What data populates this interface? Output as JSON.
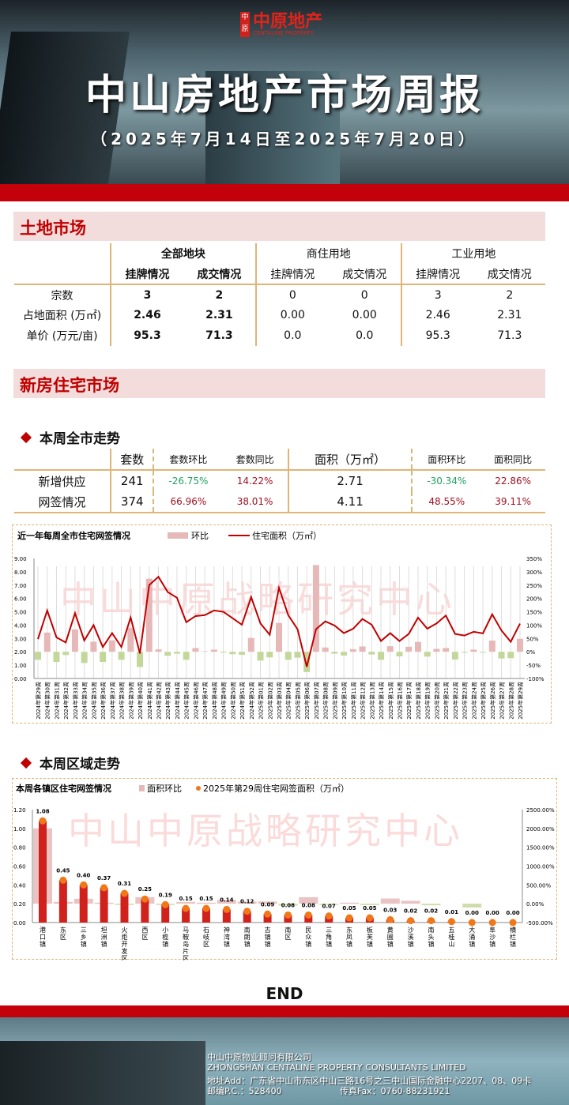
{
  "header": {
    "logo_seal": "中原",
    "logo_cn": "中原地产",
    "logo_en": "CENTALINE PROPERTY",
    "title": "中山房地产市场周报",
    "subtitle": "（2025年7月14日至2025年7月20日）"
  },
  "land": {
    "section_title": "土地市场",
    "groups": [
      "全部地块",
      "商住用地",
      "工业用地"
    ],
    "subheads": [
      "挂牌情况",
      "成交情况",
      "挂牌情况",
      "成交情况",
      "挂牌情况",
      "成交情况"
    ],
    "rows": [
      {
        "label": "宗数",
        "values": [
          "3",
          "2",
          "0",
          "0",
          "3",
          "2"
        ]
      },
      {
        "label": "占地面积 (万㎡)",
        "values": [
          "2.46",
          "2.31",
          "0.00",
          "0.00",
          "2.46",
          "2.31"
        ]
      },
      {
        "label": "单价 (万元/亩)",
        "values": [
          "95.3",
          "71.3",
          "0.0",
          "0.0",
          "95.3",
          "71.3"
        ]
      }
    ]
  },
  "newhome": {
    "section_title": "新房住宅市场",
    "city_trend_title": "本周全市走势",
    "headers": [
      "套数",
      "套数环比",
      "套数同比",
      "面积（万㎡）",
      "面积环比",
      "面积同比"
    ],
    "rows": [
      {
        "label": "新增供应",
        "values": [
          "241",
          "-26.75%",
          "14.22%",
          "2.71",
          "-30.34%",
          "22.86%"
        ]
      },
      {
        "label": "网签情况",
        "values": [
          "374",
          "66.96%",
          "38.01%",
          "4.11",
          "48.55%",
          "39.11%"
        ]
      }
    ],
    "district_trend_title": "本周区域走势"
  },
  "colors": {
    "brand_red": "#c4000b",
    "line": "#c00000",
    "bar_pos": "#e6b8b8",
    "bar_neg": "#c4d79b",
    "bar_district": "#d0211c",
    "dot": "#f07818",
    "watermark": "#fbdada"
  },
  "watermark": "中山中原战略研究中心",
  "chart_data": [
    {
      "type": "bar+line",
      "title": "近一年每周全市住宅网签情况",
      "legend": [
        "环比",
        "住宅面积（万㎡）"
      ],
      "categories": [
        "2024年第29周",
        "2024年第30周",
        "2024年第31周",
        "2024年第32周",
        "2024年第33周",
        "2024年第34周",
        "2024年第35周",
        "2024年第36周",
        "2024年第37周",
        "2024年第38周",
        "2024年第39周",
        "2024年第40周",
        "2024年第41周",
        "2024年第42周",
        "2024年第43周",
        "2024年第44周",
        "2024年第45周",
        "2024年第46周",
        "2024年第47周",
        "2024年第48周",
        "2024年第49周",
        "2024年第50周",
        "2024年第51周",
        "2024年第52周",
        "2025年第01周",
        "2025年第02周",
        "2025年第03周",
        "2025年第04周",
        "2025年第05周",
        "2025年第06周",
        "2025年第07周",
        "2025年第08周",
        "2025年第09周",
        "2025年第10周",
        "2025年第11周",
        "2025年第12周",
        "2025年第13周",
        "2025年第14周",
        "2025年第15周",
        "2025年第16周",
        "2025年第17周",
        "2025年第18周",
        "2025年第19周",
        "2025年第20周",
        "2025年第21周",
        "2025年第22周",
        "2025年第23周",
        "2025年第24周",
        "2025年第25周",
        "2025年第26周",
        "2025年第27周",
        "2025年第28周",
        "2025年第29周"
      ],
      "series": [
        {
          "name": "住宅面积（万㎡）",
          "axis": "left",
          "type": "line",
          "values": [
            2.95,
            5.1,
            3.08,
            2.7,
            4.9,
            2.85,
            4.0,
            2.36,
            3.4,
            2.36,
            4.58,
            1.87,
            7.0,
            7.62,
            6.48,
            6.05,
            4.22,
            4.68,
            4.75,
            5.1,
            5.0,
            4.52,
            4.03,
            6.1,
            4.13,
            3.28,
            6.8,
            4.75,
            3.7,
            0.88,
            3.7,
            4.28,
            3.97,
            3.4,
            3.73,
            4.46,
            4.03,
            2.81,
            3.4,
            2.81,
            3.34,
            4.56,
            3.73,
            4.13,
            4.72,
            3.34,
            3.22,
            3.5,
            3.38,
            4.81,
            3.6,
            2.75,
            4.11
          ]
        },
        {
          "name": "环比",
          "axis": "right",
          "type": "bar",
          "unit": "%",
          "values": [
            -30,
            72,
            -38,
            -12,
            84,
            -42,
            38,
            -38,
            43,
            -30,
            90,
            -57,
            274,
            9,
            -15,
            -7,
            -30,
            14,
            2,
            8,
            -3,
            -9,
            -11,
            52,
            -33,
            -21,
            108,
            -30,
            -22,
            -76,
            325,
            16,
            -7,
            -14,
            10,
            20,
            -10,
            -30,
            21,
            -17,
            19,
            37,
            -18,
            11,
            14,
            -29,
            -3,
            8,
            -3,
            42,
            -25,
            -24,
            49
          ]
        }
      ],
      "yleft": {
        "range": [
          0,
          9
        ],
        "ticks": [
          "0.00",
          "1.00",
          "2.00",
          "3.00",
          "4.00",
          "5.00",
          "6.00",
          "7.00",
          "8.00",
          "9.00"
        ]
      },
      "yright": {
        "range": [
          -100,
          350
        ],
        "ticks": [
          "-100%",
          "-50%",
          "0%",
          "50%",
          "100%",
          "150%",
          "200%",
          "250%",
          "300%",
          "350%"
        ]
      },
      "grid": false,
      "legend_position": "top"
    },
    {
      "type": "bar+scatter",
      "title": "本周各镇区住宅网签情况",
      "legend": [
        "面积环比",
        "2025年第29周住宅网签面积（万㎡）"
      ],
      "categories": [
        "港口镇",
        "东区",
        "三乡镇",
        "坦洲镇",
        "火炬开发区",
        "西区",
        "小榄镇",
        "马鞍岛片区",
        "石岐区",
        "神湾镇",
        "南朗镇",
        "古镇镇",
        "南区",
        "民众镇",
        "三角镇",
        "东凤镇",
        "板芙镇",
        "黄圃镇",
        "沙溪镇",
        "南头镇",
        "五桂山",
        "大涌镇",
        "阜沙镇",
        "横栏镇"
      ],
      "series": [
        {
          "name": "2025年第29周住宅网签面积（万㎡）",
          "axis": "left",
          "values": [
            1.08,
            0.45,
            0.4,
            0.37,
            0.31,
            0.25,
            0.19,
            0.15,
            0.15,
            0.14,
            0.12,
            0.09,
            0.08,
            0.08,
            0.07,
            0.05,
            0.05,
            0.03,
            0.02,
            0.02,
            0.01,
            0.0,
            0.0,
            0.0
          ],
          "labels": [
            "1.08",
            "0.45",
            "0.40",
            "0.37",
            "0.31",
            "0.25",
            "0.19",
            "0.15",
            "0.15",
            "0.14",
            "0.12",
            "0.09",
            "0.08",
            "0.08",
            "0.07",
            "0.05",
            "0.05",
            "0.03",
            "0.02",
            "0.02",
            "0.01",
            "0.00",
            "0.00",
            "0.00"
          ]
        },
        {
          "name": "面积环比",
          "axis": "right",
          "unit": "%",
          "values": [
            2000,
            49,
            132,
            28,
            -5,
            174,
            -28,
            49,
            28,
            98,
            56,
            60,
            -49,
            174,
            -20,
            28,
            -35,
            139,
            77,
            -42,
            0,
            -100,
            0,
            0
          ]
        }
      ],
      "yleft": {
        "range": [
          0,
          1.2
        ],
        "ticks": [
          "0.00",
          "0.20",
          "0.40",
          "0.60",
          "0.80",
          "1.00",
          "1.20"
        ]
      },
      "yright": {
        "range": [
          -500,
          2500
        ],
        "ticks": [
          "-500.00%",
          "0.00%",
          "500.00%",
          "1000.00%",
          "1500.00%",
          "2000.00%",
          "2500.00%"
        ]
      },
      "grid": false,
      "legend_position": "top"
    }
  ],
  "end_label": "END",
  "footer": {
    "company_cn": "中山中原物业顾问有限公司",
    "company_en": "ZHONGSHAN CENTALINE PROPERTY CONSULTANTS LIMITED",
    "address": "地址Add：广东省中山市东区中山三路16号之三中山国际金融中心2207、08、09卡",
    "postcode": "邮编P.C.：528400",
    "fax": "传真Fax：0760-88231921"
  }
}
